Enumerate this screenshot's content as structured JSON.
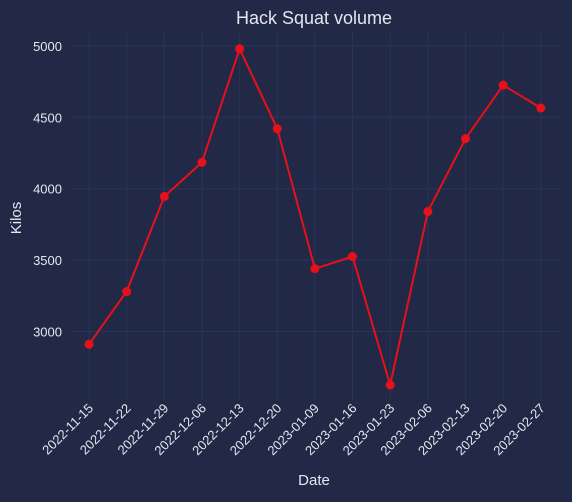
{
  "chart_data": {
    "type": "line",
    "title": "Hack Squat volume",
    "xlabel": "Date",
    "ylabel": "Kilos",
    "categories": [
      "2022-11-15",
      "2022-11-22",
      "2022-11-29",
      "2022-12-06",
      "2022-12-13",
      "2022-12-20",
      "2023-01-09",
      "2023-01-16",
      "2023-01-23",
      "2023-02-06",
      "2023-02-13",
      "2023-02-20",
      "2023-02-27"
    ],
    "series": [
      {
        "name": "",
        "values": [
          2910,
          3280,
          3945,
          4185,
          4980,
          4420,
          3440,
          3525,
          2625,
          3840,
          4350,
          4725,
          4565
        ]
      }
    ],
    "yticks": [
      3000,
      3500,
      4000,
      4500,
      5000
    ],
    "ylim": [
      2540,
      5100
    ],
    "grid": true,
    "colors": {
      "background": "#212946",
      "line": "#e8101a",
      "grid": "#2a3459",
      "text": "#e6e6ee"
    }
  }
}
